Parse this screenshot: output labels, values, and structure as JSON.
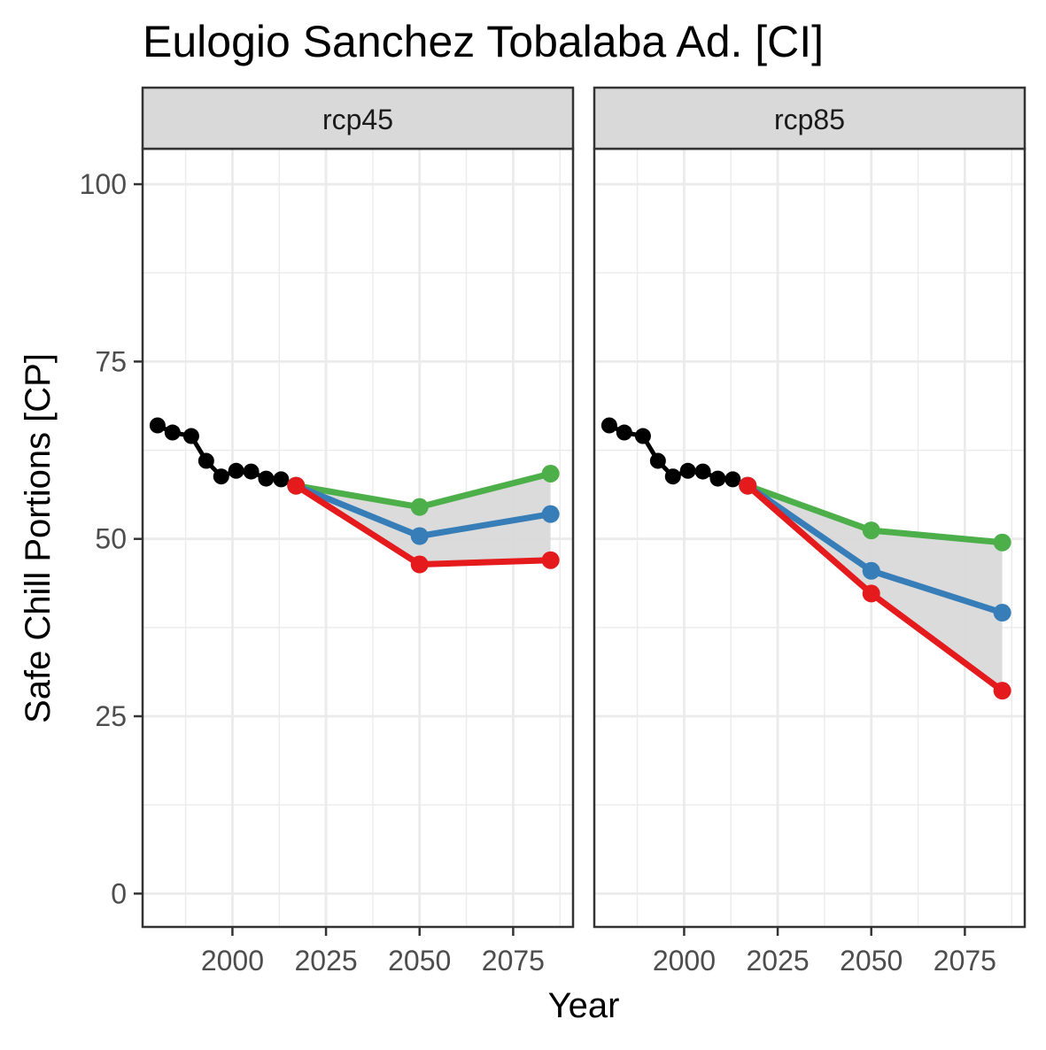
{
  "chart_data": {
    "type": "line",
    "title": "Eulogio Sanchez Tobalaba Ad. [CI]",
    "xlabel": "Year",
    "ylabel": "Safe Chill Portions [CP]",
    "xlim": [
      1976,
      2091
    ],
    "ylim": [
      -4.7,
      105
    ],
    "x_ticks": [
      2000,
      2025,
      2050,
      2075
    ],
    "y_ticks": [
      0,
      25,
      50,
      75,
      100
    ],
    "grid": true,
    "legend": "none",
    "colors": {
      "historic": "#000000",
      "high": "#4DAF4A",
      "mid": "#377EB8",
      "low": "#E41A1C",
      "ribbon": "#D9D9D9",
      "strip": "#D9D9D9",
      "grid": "#EBEBEB"
    },
    "panels": [
      {
        "label": "rcp45",
        "historic": {
          "x": [
            1980,
            1984,
            1989,
            1993,
            1997,
            2001,
            2005,
            2009,
            2013,
            2017
          ],
          "y": [
            66.0,
            65.0,
            64.5,
            61.0,
            58.8,
            59.6,
            59.5,
            58.5,
            58.4,
            57.5
          ]
        },
        "projections": {
          "x": [
            2017,
            2050,
            2085
          ],
          "high": [
            57.5,
            54.5,
            59.2
          ],
          "mid": [
            57.5,
            50.4,
            53.5
          ],
          "low": [
            57.5,
            46.4,
            47.0
          ]
        }
      },
      {
        "label": "rcp85",
        "historic": {
          "x": [
            1980,
            1984,
            1989,
            1993,
            1997,
            2001,
            2005,
            2009,
            2013,
            2017
          ],
          "y": [
            66.0,
            65.0,
            64.5,
            61.0,
            58.8,
            59.6,
            59.5,
            58.5,
            58.4,
            57.5
          ]
        },
        "projections": {
          "x": [
            2017,
            2050,
            2085
          ],
          "high": [
            57.5,
            51.2,
            49.5
          ],
          "mid": [
            57.5,
            45.5,
            39.6
          ],
          "low": [
            57.5,
            42.3,
            28.6
          ]
        }
      }
    ]
  }
}
